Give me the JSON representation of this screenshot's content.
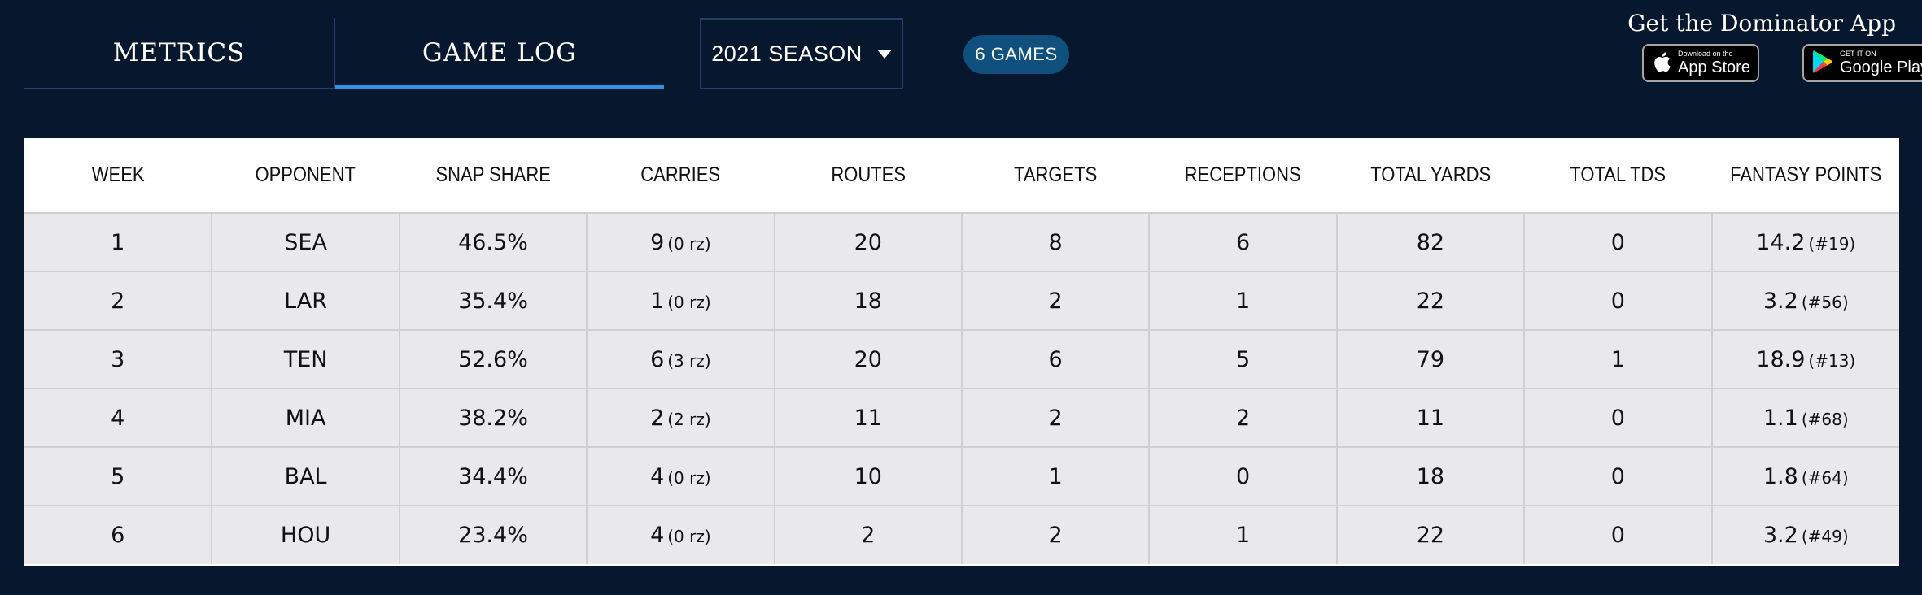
{
  "tabs": [
    {
      "label": "METRICS",
      "active": false
    },
    {
      "label": "GAME LOG",
      "active": true
    }
  ],
  "season_select": {
    "label": "2021 SEASON"
  },
  "games_badge": "6 GAMES",
  "app_promo": {
    "title": "Get the Dominator App",
    "apple": {
      "small": "Download on the",
      "big": "App Store"
    },
    "google": {
      "small": "GET IT ON",
      "big": "Google Play"
    }
  },
  "accent_color": "#2f8fe3",
  "table": {
    "headers": [
      "WEEK",
      "OPPONENT",
      "SNAP SHARE",
      "CARRIES",
      "ROUTES",
      "TARGETS",
      "RECEPTIONS",
      "TOTAL YARDS",
      "TOTAL TDS",
      "FANTASY POINTS"
    ],
    "rows": [
      {
        "week": "1",
        "opponent": "SEA",
        "snap_share": "46.5%",
        "carries": "9",
        "carries_rz": "(0 rz)",
        "routes": "20",
        "targets": "8",
        "receptions": "6",
        "total_yards": "82",
        "total_tds": "0",
        "fantasy_points": "14.2",
        "fantasy_rank": "(#19)"
      },
      {
        "week": "2",
        "opponent": "LAR",
        "snap_share": "35.4%",
        "carries": "1",
        "carries_rz": "(0 rz)",
        "routes": "18",
        "targets": "2",
        "receptions": "1",
        "total_yards": "22",
        "total_tds": "0",
        "fantasy_points": "3.2",
        "fantasy_rank": "(#56)"
      },
      {
        "week": "3",
        "opponent": "TEN",
        "snap_share": "52.6%",
        "carries": "6",
        "carries_rz": "(3 rz)",
        "routes": "20",
        "targets": "6",
        "receptions": "5",
        "total_yards": "79",
        "total_tds": "1",
        "fantasy_points": "18.9",
        "fantasy_rank": "(#13)"
      },
      {
        "week": "4",
        "opponent": "MIA",
        "snap_share": "38.2%",
        "carries": "2",
        "carries_rz": "(2 rz)",
        "routes": "11",
        "targets": "2",
        "receptions": "2",
        "total_yards": "11",
        "total_tds": "0",
        "fantasy_points": "1.1",
        "fantasy_rank": "(#68)"
      },
      {
        "week": "5",
        "opponent": "BAL",
        "snap_share": "34.4%",
        "carries": "4",
        "carries_rz": "(0 rz)",
        "routes": "10",
        "targets": "1",
        "receptions": "0",
        "total_yards": "18",
        "total_tds": "0",
        "fantasy_points": "1.8",
        "fantasy_rank": "(#64)"
      },
      {
        "week": "6",
        "opponent": "HOU",
        "snap_share": "23.4%",
        "carries": "4",
        "carries_rz": "(0 rz)",
        "routes": "2",
        "targets": "2",
        "receptions": "1",
        "total_yards": "22",
        "total_tds": "0",
        "fantasy_points": "3.2",
        "fantasy_rank": "(#49)"
      }
    ]
  }
}
